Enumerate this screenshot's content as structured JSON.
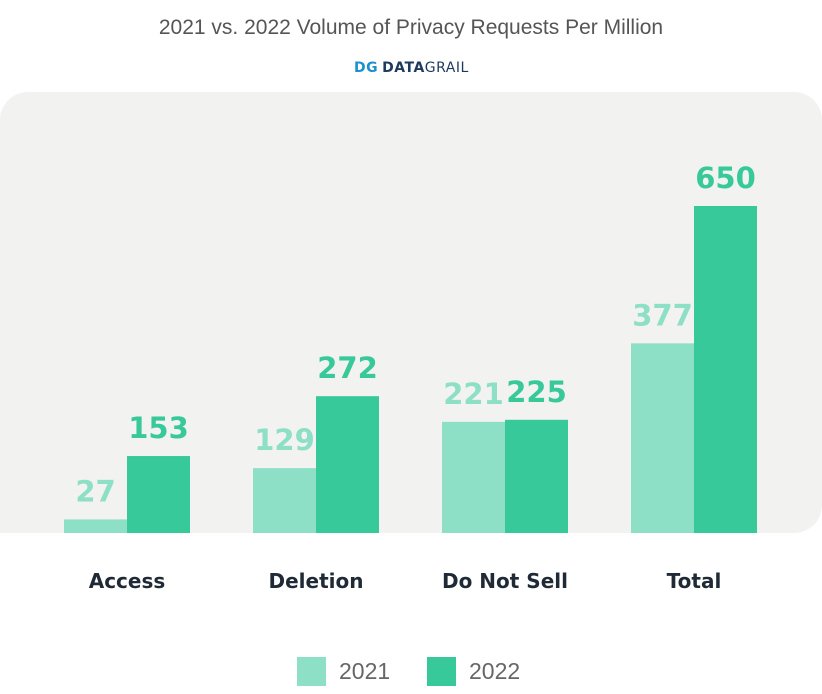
{
  "chart_data": {
    "type": "bar",
    "title": "2021 vs. 2022 Volume of Privacy Requests Per Million",
    "brand": "DATAGRAIL",
    "categories": [
      "Access",
      "Deletion",
      "Do Not Sell",
      "Total"
    ],
    "series": [
      {
        "name": "2021",
        "color": "#8ddfc6",
        "values": [
          27,
          129,
          221,
          377
        ]
      },
      {
        "name": "2022",
        "color": "#38c99b",
        "values": [
          153,
          272,
          225,
          650
        ]
      }
    ],
    "xlabel": "",
    "ylabel": "",
    "ylim": [
      0,
      650
    ],
    "grid": false,
    "legend_position": "bottom-center"
  }
}
